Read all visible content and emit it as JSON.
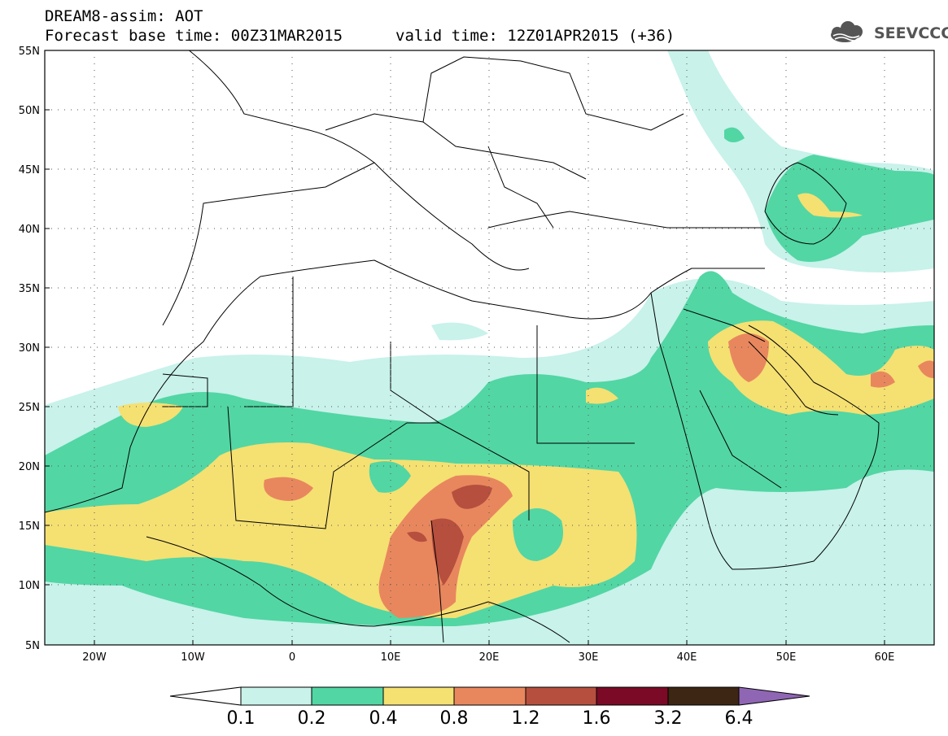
{
  "header": {
    "line1": "DREAM8-assim: AOT",
    "line2": "Forecast base time: 00Z31MAR2015",
    "line3": "valid time: 12Z01APR2015 (+36)"
  },
  "logo": {
    "text": "SEEVCCC",
    "icon": "cloud-icon"
  },
  "map": {
    "lat_ticks": [
      "55N",
      "50N",
      "45N",
      "40N",
      "35N",
      "30N",
      "25N",
      "20N",
      "15N",
      "10N",
      "5N"
    ],
    "lon_ticks": [
      "20W",
      "10W",
      "0",
      "10E",
      "20E",
      "30E",
      "40E",
      "50E",
      "60E"
    ]
  },
  "legend": {
    "labels": [
      "0.1",
      "0.2",
      "0.4",
      "0.8",
      "1.2",
      "1.6",
      "3.2",
      "6.4"
    ],
    "colors": [
      "#ffffff",
      "#c8f2ea",
      "#52d6a4",
      "#f5e072",
      "#e8875e",
      "#b64f3e",
      "#7a0a25",
      "#3d2614",
      "#8f66b4"
    ]
  }
}
